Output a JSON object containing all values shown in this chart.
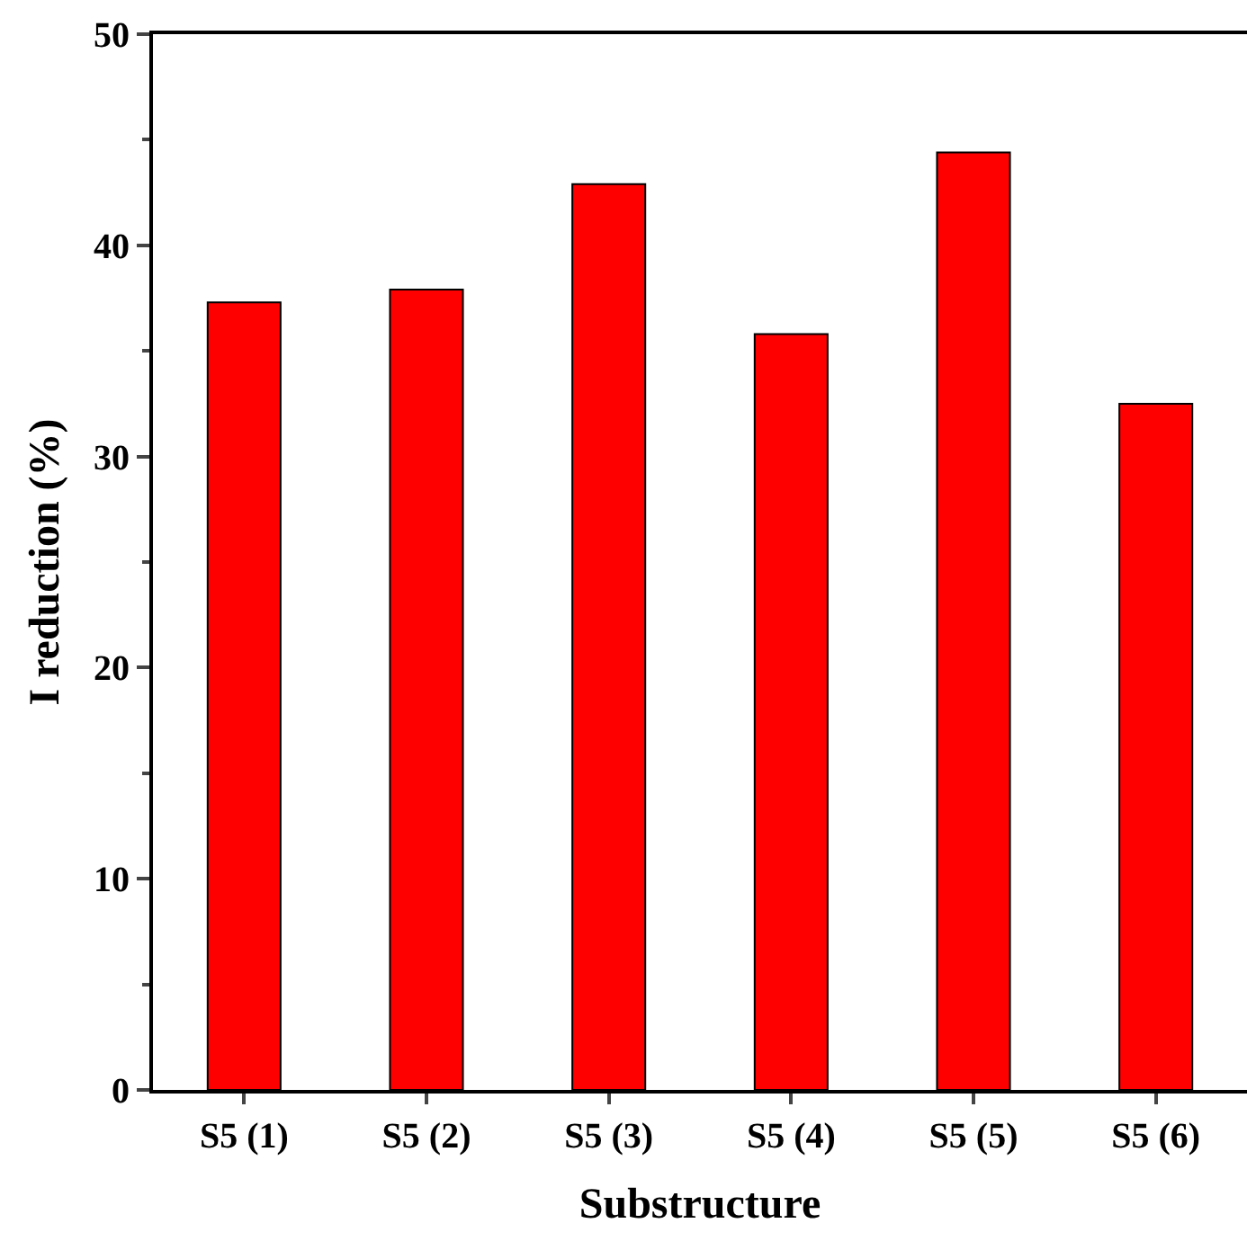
{
  "chart_data": {
    "type": "bar",
    "xlabel": "Substructure",
    "ylabel": "I reduction (%)",
    "categories": [
      "S5 (1)",
      "S5 (2)",
      "S5 (3)",
      "S5 (4)",
      "S5 (5)",
      "S5 (6)"
    ],
    "values": [
      37.3,
      37.9,
      42.9,
      35.8,
      44.4,
      32.5
    ],
    "color": "#ff0000",
    "ylim": [
      0,
      50
    ],
    "yticks": [
      0,
      10,
      20,
      30,
      40,
      50
    ],
    "grid": false,
    "legend": false
  }
}
